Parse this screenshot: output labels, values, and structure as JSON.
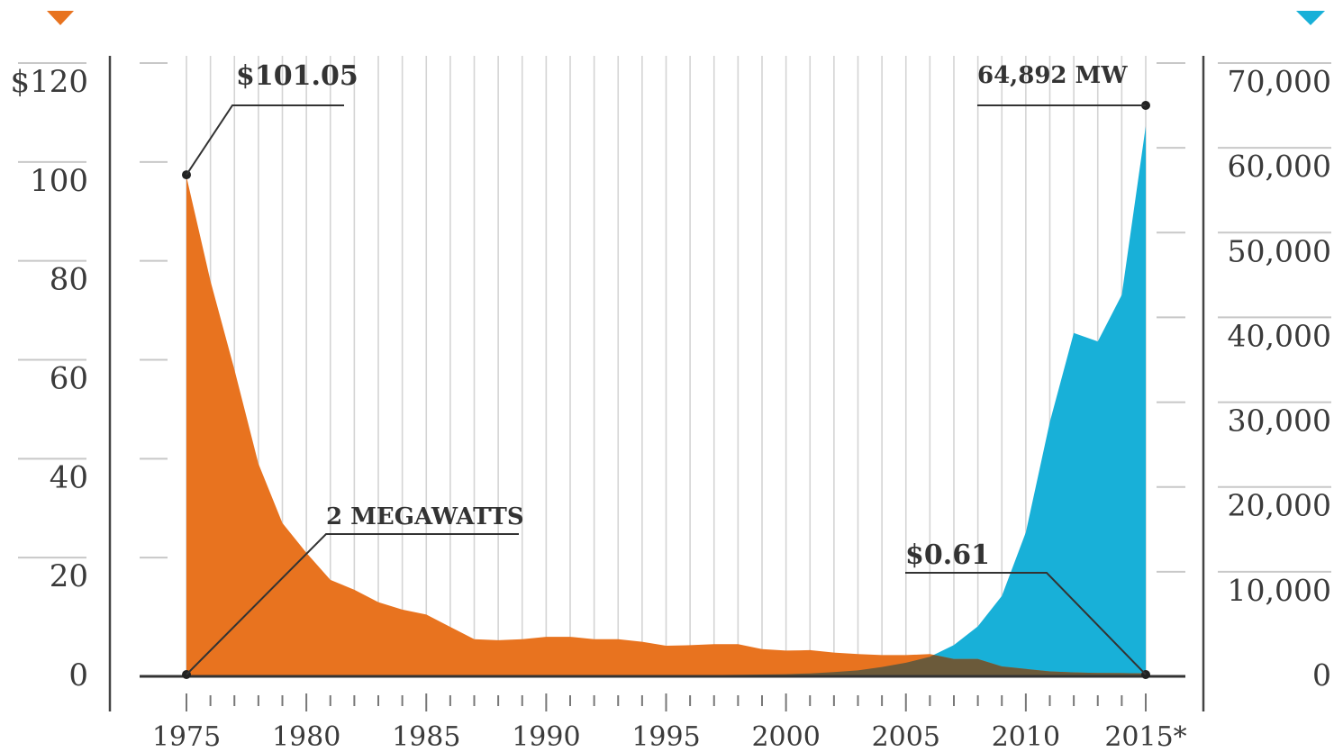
{
  "chart_data": {
    "type": "area",
    "colors": {
      "price": "#e8731f",
      "capacity": "#18b0d8",
      "overlap": "#6b5a3a"
    },
    "x_range": [
      1975,
      2015
    ],
    "x_ticks": [
      {
        "value": 1975,
        "label": "1975"
      },
      {
        "value": 1980,
        "label": "1980"
      },
      {
        "value": 1985,
        "label": "1985"
      },
      {
        "value": 1990,
        "label": "1990"
      },
      {
        "value": 1995,
        "label": "1995"
      },
      {
        "value": 2000,
        "label": "2000"
      },
      {
        "value": 2005,
        "label": "2005"
      },
      {
        "value": 2010,
        "label": "2010"
      },
      {
        "value": 2015,
        "label": "2015*"
      }
    ],
    "y_left": {
      "range": [
        0,
        120
      ],
      "ticks": [
        {
          "value": 0,
          "label": "0"
        },
        {
          "value": 20,
          "label": "20"
        },
        {
          "value": 40,
          "label": "40"
        },
        {
          "value": 60,
          "label": "60"
        },
        {
          "value": 80,
          "label": "80"
        },
        {
          "value": 100,
          "label": "100"
        },
        {
          "value": 120,
          "label": "$120"
        }
      ]
    },
    "y_right": {
      "range": [
        0,
        70000
      ],
      "ticks": [
        {
          "value": 0,
          "label": "0"
        },
        {
          "value": 10000,
          "label": "10,000"
        },
        {
          "value": 20000,
          "label": "20,000"
        },
        {
          "value": 30000,
          "label": "30,000"
        },
        {
          "value": 40000,
          "label": "40,000"
        },
        {
          "value": 50000,
          "label": "50,000"
        },
        {
          "value": 60000,
          "label": "60,000"
        },
        {
          "value": 70000,
          "label": "70,000"
        }
      ]
    },
    "series": [
      {
        "axis": "left",
        "color": "#e8731f",
        "points": [
          [
            1975,
            101.05
          ],
          [
            1976,
            80
          ],
          [
            1977,
            62
          ],
          [
            1978,
            43
          ],
          [
            1979,
            31
          ],
          [
            1980,
            25
          ],
          [
            1981,
            19.5
          ],
          [
            1982,
            17.5
          ],
          [
            1983,
            15
          ],
          [
            1984,
            13.5
          ],
          [
            1985,
            12.5
          ],
          [
            1986,
            10
          ],
          [
            1987,
            7.5
          ],
          [
            1988,
            7.3
          ],
          [
            1989,
            7.5
          ],
          [
            1990,
            8
          ],
          [
            1991,
            8
          ],
          [
            1992,
            7.5
          ],
          [
            1993,
            7.5
          ],
          [
            1994,
            7
          ],
          [
            1995,
            6.2
          ],
          [
            1996,
            6.3
          ],
          [
            1997,
            6.5
          ],
          [
            1998,
            6.5
          ],
          [
            1999,
            5.5
          ],
          [
            2000,
            5.2
          ],
          [
            2001,
            5.3
          ],
          [
            2002,
            4.8
          ],
          [
            2003,
            4.5
          ],
          [
            2004,
            4.3
          ],
          [
            2005,
            4.3
          ],
          [
            2006,
            4.5
          ],
          [
            2007,
            3.5
          ],
          [
            2008,
            3.5
          ],
          [
            2009,
            2
          ],
          [
            2010,
            1.5
          ],
          [
            2011,
            1
          ],
          [
            2012,
            0.8
          ],
          [
            2013,
            0.7
          ],
          [
            2014,
            0.65
          ],
          [
            2015,
            0.61
          ]
        ]
      },
      {
        "axis": "right",
        "color": "#18b0d8",
        "points": [
          [
            1975,
            2
          ],
          [
            1980,
            5
          ],
          [
            1985,
            10
          ],
          [
            1990,
            40
          ],
          [
            1995,
            70
          ],
          [
            2000,
            250
          ],
          [
            2001,
            350
          ],
          [
            2002,
            500
          ],
          [
            2003,
            700
          ],
          [
            2004,
            1100
          ],
          [
            2005,
            1600
          ],
          [
            2006,
            2300
          ],
          [
            2007,
            3700
          ],
          [
            2008,
            5900
          ],
          [
            2009,
            9500
          ],
          [
            2010,
            17000
          ],
          [
            2011,
            30000
          ],
          [
            2012,
            40500
          ],
          [
            2013,
            39500
          ],
          [
            2014,
            45000
          ],
          [
            2015,
            64892
          ]
        ]
      }
    ],
    "annotations": [
      {
        "text": "$101.05",
        "x": 1975,
        "y": 101.05,
        "axis": "left"
      },
      {
        "text": "2 MEGAWATTS",
        "x": 1975,
        "y": 0,
        "axis": "left"
      },
      {
        "text": "$0.61",
        "x": 2015,
        "y": 0.61,
        "axis": "left"
      },
      {
        "text": "64,892 MW",
        "x": 2015,
        "y": 64892,
        "axis": "right"
      }
    ],
    "title": "",
    "xlabel": "",
    "ylabel": ""
  }
}
